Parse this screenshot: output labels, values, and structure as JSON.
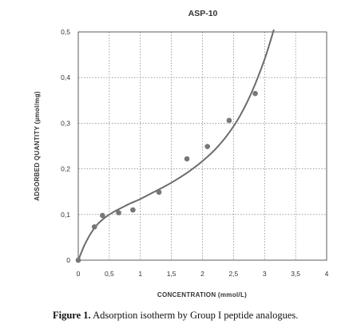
{
  "chart_data": {
    "type": "scatter",
    "title": "ASP-10",
    "xlabel": "CONCENTRATION   (mmol/L)",
    "ylabel": "ADSORBED  QUANTITY  (µmol/mg)",
    "xlim": [
      0,
      4
    ],
    "ylim": [
      0,
      0.5
    ],
    "x_ticks": [
      0,
      0.5,
      1,
      1.5,
      2,
      2.5,
      3,
      3.5,
      4
    ],
    "x_tick_labels": [
      "0",
      "0,5",
      "1",
      "1,5",
      "2",
      "2,5",
      "3",
      "3,5",
      "4"
    ],
    "y_ticks": [
      0,
      0.1,
      0.2,
      0.3,
      0.4,
      0.5
    ],
    "y_tick_labels": [
      "0",
      "0,1",
      "0,2",
      "0,3",
      "0,4",
      "0,5"
    ],
    "grid": true,
    "grid_style": "dotted",
    "points": {
      "x": [
        0.0,
        0.26,
        0.39,
        0.65,
        0.88,
        1.3,
        1.75,
        2.08,
        2.43,
        2.85
      ],
      "y": [
        0.0,
        0.073,
        0.098,
        0.104,
        0.11,
        0.149,
        0.222,
        0.249,
        0.306,
        0.365
      ]
    },
    "fit_curve": {
      "x": [
        0.0,
        0.1,
        0.2,
        0.3,
        0.4,
        0.5,
        0.6,
        0.7,
        0.8,
        0.9,
        1.0,
        1.2,
        1.4,
        1.6,
        1.8,
        2.0,
        2.2,
        2.4,
        2.6,
        2.8,
        3.0,
        3.15
      ],
      "y": [
        0.0,
        0.033,
        0.058,
        0.077,
        0.09,
        0.1,
        0.108,
        0.115,
        0.122,
        0.128,
        0.134,
        0.148,
        0.162,
        0.178,
        0.196,
        0.217,
        0.242,
        0.274,
        0.315,
        0.37,
        0.44,
        0.505
      ]
    },
    "marker_color": "#777777",
    "line_color": "#6b6b6b"
  },
  "caption": {
    "label": "Figure 1.",
    "text": " Adsorption isotherm by Group I peptide analogues."
  }
}
